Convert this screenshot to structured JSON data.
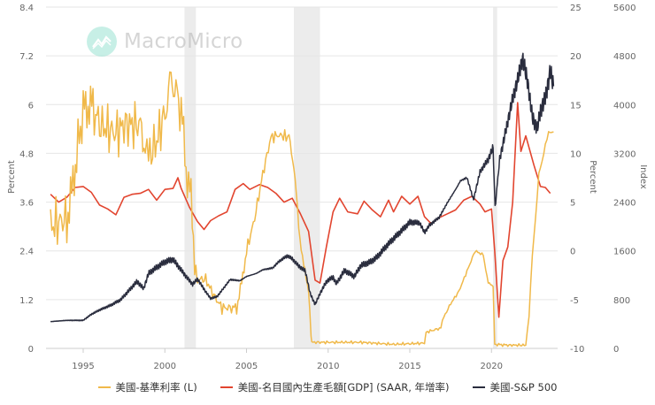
{
  "watermark": {
    "text": "MacroMicro"
  },
  "axes": {
    "left": {
      "title": "Percent",
      "ticks": [
        "0",
        "1.2",
        "2.4",
        "3.6",
        "4.8",
        "6",
        "7.2",
        "8.4"
      ],
      "range": [
        0,
        8.4
      ]
    },
    "middle": {
      "title": "Percent",
      "ticks": [
        "-10",
        "-5",
        "0",
        "5",
        "10",
        "15",
        "20",
        "25"
      ],
      "range": [
        -10,
        25
      ]
    },
    "right": {
      "title": "Index",
      "ticks": [
        "0",
        "800",
        "1600",
        "2400",
        "3200",
        "4000",
        "4800",
        "5600"
      ],
      "range": [
        0,
        5600
      ]
    },
    "x": {
      "ticks": [
        "1995",
        "2000",
        "2005",
        "2010",
        "2015",
        "2020"
      ]
    }
  },
  "legend": [
    {
      "label": "美國-基準利率 (L)",
      "color": "#f0b94a"
    },
    {
      "label": "美國-名目國內生產毛額[GDP] (SAAR, 年增率)",
      "color": "#e2452f"
    },
    {
      "label": "美國-S&P 500",
      "color": "#2a2d3e"
    }
  ],
  "chart_data": {
    "type": "line",
    "title": "",
    "xlabel": "",
    "x_range": [
      1993,
      2023.8
    ],
    "recession_bands": [
      [
        2001.2,
        2001.9
      ],
      [
        2007.9,
        2009.5
      ],
      [
        2020.1,
        2020.35
      ]
    ],
    "grid": true,
    "legend_position": "bottom",
    "series": [
      {
        "name": "美國-基準利率 (L)",
        "axis": "left",
        "ylabel": "Percent",
        "ylim": [
          0,
          8.4
        ],
        "points": [
          [
            1993.0,
            3.0
          ],
          [
            1993.5,
            3.1
          ],
          [
            1994.0,
            3.2
          ],
          [
            1994.3,
            3.8
          ],
          [
            1994.6,
            4.8
          ],
          [
            1995.0,
            5.8
          ],
          [
            1995.3,
            6.0
          ],
          [
            1995.6,
            5.9
          ],
          [
            1996.0,
            5.5
          ],
          [
            1996.5,
            5.4
          ],
          [
            1997.0,
            5.3
          ],
          [
            1997.5,
            5.5
          ],
          [
            1998.0,
            5.5
          ],
          [
            1998.5,
            5.5
          ],
          [
            1998.8,
            5.0
          ],
          [
            1999.0,
            4.7
          ],
          [
            1999.5,
            5.1
          ],
          [
            2000.0,
            5.8
          ],
          [
            2000.3,
            6.5
          ],
          [
            2000.6,
            6.5
          ],
          [
            2001.0,
            5.8
          ],
          [
            2001.3,
            4.5
          ],
          [
            2001.6,
            3.6
          ],
          [
            2001.9,
            2.0
          ],
          [
            2002.0,
            1.7
          ],
          [
            2002.5,
            1.7
          ],
          [
            2003.0,
            1.3
          ],
          [
            2003.5,
            1.0
          ],
          [
            2004.0,
            1.0
          ],
          [
            2004.4,
            1.0
          ],
          [
            2004.7,
            1.6
          ],
          [
            2005.0,
            2.4
          ],
          [
            2005.5,
            3.2
          ],
          [
            2006.0,
            4.3
          ],
          [
            2006.5,
            5.2
          ],
          [
            2007.0,
            5.25
          ],
          [
            2007.6,
            5.2
          ],
          [
            2007.9,
            4.5
          ],
          [
            2008.2,
            3.0
          ],
          [
            2008.5,
            2.0
          ],
          [
            2008.8,
            1.5
          ],
          [
            2008.95,
            0.3
          ],
          [
            2009.0,
            0.15
          ],
          [
            2010.0,
            0.15
          ],
          [
            2012.0,
            0.15
          ],
          [
            2014.0,
            0.1
          ],
          [
            2015.9,
            0.13
          ],
          [
            2016.0,
            0.4
          ],
          [
            2016.9,
            0.5
          ],
          [
            2017.0,
            0.7
          ],
          [
            2017.5,
            1.1
          ],
          [
            2018.0,
            1.4
          ],
          [
            2018.5,
            1.9
          ],
          [
            2019.0,
            2.4
          ],
          [
            2019.5,
            2.3
          ],
          [
            2019.8,
            1.6
          ],
          [
            2020.1,
            1.55
          ],
          [
            2020.2,
            0.1
          ],
          [
            2021.0,
            0.08
          ],
          [
            2022.1,
            0.08
          ],
          [
            2022.3,
            0.8
          ],
          [
            2022.5,
            2.3
          ],
          [
            2022.7,
            3.2
          ],
          [
            2022.9,
            4.3
          ],
          [
            2023.1,
            4.6
          ],
          [
            2023.3,
            5.0
          ],
          [
            2023.5,
            5.33
          ],
          [
            2023.8,
            5.33
          ]
        ]
      },
      {
        "name": "美國-名目國內生產毛額[GDP] (SAAR, 年增率)",
        "axis": "middle",
        "ylabel": "Percent",
        "ylim": [
          -10,
          25
        ],
        "points": [
          [
            1993.0,
            5.8
          ],
          [
            1993.5,
            5.0
          ],
          [
            1994.0,
            5.5
          ],
          [
            1994.5,
            6.5
          ],
          [
            1995.0,
            6.6
          ],
          [
            1995.5,
            6.0
          ],
          [
            1996.0,
            4.7
          ],
          [
            1996.5,
            4.3
          ],
          [
            1997.0,
            3.7
          ],
          [
            1997.5,
            5.5
          ],
          [
            1998.0,
            5.8
          ],
          [
            1998.5,
            5.9
          ],
          [
            1999.0,
            6.3
          ],
          [
            1999.5,
            5.2
          ],
          [
            2000.0,
            6.3
          ],
          [
            2000.5,
            6.4
          ],
          [
            2000.8,
            7.5
          ],
          [
            2001.0,
            6.4
          ],
          [
            2001.5,
            4.5
          ],
          [
            2002.0,
            3.0
          ],
          [
            2002.4,
            2.2
          ],
          [
            2002.8,
            3.1
          ],
          [
            2003.3,
            3.6
          ],
          [
            2003.8,
            4.0
          ],
          [
            2004.3,
            6.3
          ],
          [
            2004.8,
            6.9
          ],
          [
            2005.2,
            6.3
          ],
          [
            2005.8,
            6.8
          ],
          [
            2006.3,
            6.5
          ],
          [
            2006.8,
            5.9
          ],
          [
            2007.3,
            5.0
          ],
          [
            2007.8,
            5.4
          ],
          [
            2008.3,
            3.8
          ],
          [
            2008.8,
            2.0
          ],
          [
            2009.2,
            -3.0
          ],
          [
            2009.5,
            -3.3
          ],
          [
            2009.9,
            0.5
          ],
          [
            2010.3,
            4.0
          ],
          [
            2010.7,
            5.4
          ],
          [
            2011.2,
            4.0
          ],
          [
            2011.8,
            3.8
          ],
          [
            2012.2,
            5.1
          ],
          [
            2012.7,
            4.2
          ],
          [
            2013.2,
            3.5
          ],
          [
            2013.7,
            5.2
          ],
          [
            2014.0,
            4.0
          ],
          [
            2014.5,
            5.6
          ],
          [
            2015.0,
            4.8
          ],
          [
            2015.5,
            5.6
          ],
          [
            2015.9,
            3.5
          ],
          [
            2016.3,
            2.8
          ],
          [
            2016.8,
            3.4
          ],
          [
            2017.3,
            3.8
          ],
          [
            2017.8,
            4.2
          ],
          [
            2018.3,
            5.2
          ],
          [
            2018.8,
            5.6
          ],
          [
            2019.3,
            4.8
          ],
          [
            2019.6,
            4.0
          ],
          [
            2020.0,
            4.3
          ],
          [
            2020.2,
            0.0
          ],
          [
            2020.45,
            -6.8
          ],
          [
            2020.7,
            -1.0
          ],
          [
            2021.0,
            0.4
          ],
          [
            2021.3,
            5.0
          ],
          [
            2021.6,
            15.2
          ],
          [
            2021.8,
            10.2
          ],
          [
            2022.1,
            11.8
          ],
          [
            2022.6,
            8.8
          ],
          [
            2023.0,
            6.6
          ],
          [
            2023.3,
            6.5
          ],
          [
            2023.6,
            5.9
          ]
        ]
      },
      {
        "name": "美國-S&P 500",
        "axis": "right",
        "ylabel": "Index",
        "ylim": [
          0,
          5600
        ],
        "points": [
          [
            1993.0,
            440
          ],
          [
            1994.0,
            460
          ],
          [
            1995.0,
            460
          ],
          [
            1995.5,
            560
          ],
          [
            1996.0,
            630
          ],
          [
            1996.7,
            710
          ],
          [
            1997.3,
            800
          ],
          [
            1997.8,
            950
          ],
          [
            1998.3,
            1100
          ],
          [
            1998.7,
            980
          ],
          [
            1999.0,
            1230
          ],
          [
            1999.5,
            1330
          ],
          [
            2000.0,
            1420
          ],
          [
            2000.5,
            1460
          ],
          [
            2000.9,
            1320
          ],
          [
            2001.3,
            1180
          ],
          [
            2001.7,
            1050
          ],
          [
            2002.0,
            1140
          ],
          [
            2002.5,
            930
          ],
          [
            2002.8,
            820
          ],
          [
            2003.2,
            850
          ],
          [
            2003.6,
            990
          ],
          [
            2004.0,
            1130
          ],
          [
            2004.6,
            1110
          ],
          [
            2005.0,
            1180
          ],
          [
            2005.6,
            1230
          ],
          [
            2006.0,
            1290
          ],
          [
            2006.6,
            1320
          ],
          [
            2007.0,
            1430
          ],
          [
            2007.5,
            1520
          ],
          [
            2007.8,
            1470
          ],
          [
            2008.2,
            1350
          ],
          [
            2008.6,
            1270
          ],
          [
            2008.9,
            900
          ],
          [
            2009.2,
            720
          ],
          [
            2009.5,
            900
          ],
          [
            2009.9,
            1100
          ],
          [
            2010.3,
            1170
          ],
          [
            2010.5,
            1060
          ],
          [
            2011.0,
            1280
          ],
          [
            2011.6,
            1180
          ],
          [
            2012.0,
            1360
          ],
          [
            2012.6,
            1420
          ],
          [
            2013.0,
            1500
          ],
          [
            2013.6,
            1690
          ],
          [
            2014.0,
            1800
          ],
          [
            2014.6,
            1960
          ],
          [
            2015.0,
            2070
          ],
          [
            2015.6,
            2060
          ],
          [
            2015.9,
            1900
          ],
          [
            2016.2,
            2020
          ],
          [
            2016.8,
            2150
          ],
          [
            2017.3,
            2390
          ],
          [
            2017.9,
            2650
          ],
          [
            2018.1,
            2750
          ],
          [
            2018.5,
            2800
          ],
          [
            2018.9,
            2440
          ],
          [
            2019.3,
            2900
          ],
          [
            2019.8,
            3100
          ],
          [
            2020.1,
            3300
          ],
          [
            2020.22,
            2300
          ],
          [
            2020.5,
            3100
          ],
          [
            2020.9,
            3600
          ],
          [
            2021.3,
            4100
          ],
          [
            2021.6,
            4400
          ],
          [
            2021.9,
            4760
          ],
          [
            2022.2,
            4400
          ],
          [
            2022.5,
            3800
          ],
          [
            2022.8,
            3600
          ],
          [
            2023.0,
            3900
          ],
          [
            2023.3,
            4100
          ],
          [
            2023.6,
            4550
          ],
          [
            2023.8,
            4300
          ]
        ]
      }
    ]
  }
}
